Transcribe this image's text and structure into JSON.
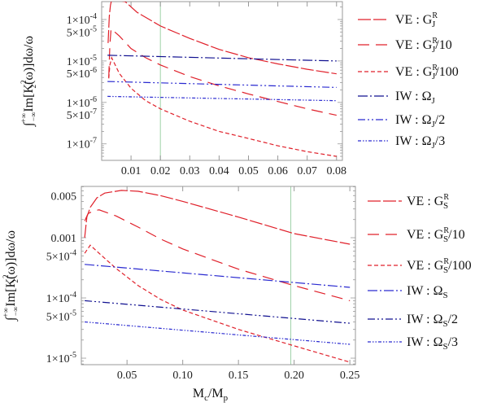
{
  "colors": {
    "red": "#e0202a",
    "blue": "#2a2ad0",
    "navy": "#101090",
    "grid": "#9fd3a8",
    "frame": "#999999"
  },
  "chart_data": [
    {
      "type": "line",
      "yscale": "log",
      "xlim": [
        0,
        0.082
      ],
      "ylim": [
        4e-08,
        0.00027
      ],
      "xlabel": null,
      "ylabel": [
        {
          "t": "∫"
        },
        {
          "t": "+∞",
          "s": "sup"
        },
        {
          "t": "−∞",
          "s": "sub"
        },
        {
          "t": "Im[K"
        },
        {
          "t": "2",
          "s": "sup"
        },
        {
          "t": "2",
          "s": "sub"
        },
        {
          "t": "(ω)]dω/ω"
        }
      ],
      "vline": 0.02,
      "xticks": [
        {
          "v": 0.01,
          "label": "0.01"
        },
        {
          "v": 0.02,
          "label": "0.02"
        },
        {
          "v": 0.03,
          "label": "0.03"
        },
        {
          "v": 0.04,
          "label": "0.04"
        },
        {
          "v": 0.05,
          "label": "0.05"
        },
        {
          "v": 0.06,
          "label": "0.06"
        },
        {
          "v": 0.07,
          "label": "0.07"
        },
        {
          "v": 0.08,
          "label": "0.08"
        }
      ],
      "yticks": [
        {
          "v": 0.0001,
          "m": "1",
          "e": "-4"
        },
        {
          "v": 5e-05,
          "m": "5",
          "e": "-5"
        },
        {
          "v": 1e-05,
          "m": "1",
          "e": "-5"
        },
        {
          "v": 5e-06,
          "m": "5",
          "e": "-6"
        },
        {
          "v": 1e-06,
          "m": "1",
          "e": "-6"
        },
        {
          "v": 5e-07,
          "m": "5",
          "e": "-7"
        },
        {
          "v": 1e-07,
          "m": "1",
          "e": "-7"
        }
      ],
      "legend_position": "right",
      "series": [
        {
          "name": "VE : G_J^R",
          "label": {
            "pre": "VE : G",
            "sup": "R",
            "sub": "J",
            "post": ""
          },
          "color": "red",
          "dash": "16,3",
          "x": [
            0.0022,
            0.0026,
            0.003,
            0.0034,
            0.008,
            0.012,
            0.02,
            0.03,
            0.04,
            0.05,
            0.06,
            0.07,
            0.08
          ],
          "y": [
            2.7e-05,
            0.00012,
            0.00022,
            0.0003,
            0.00027,
            0.00015,
            7e-05,
            3.5e-05,
            1.9e-05,
            1.2e-05,
            8.5e-06,
            6.3e-06,
            4.9e-06
          ]
        },
        {
          "name": "VE : G_J^R/10",
          "label": {
            "pre": "VE : G",
            "sup": "R",
            "sub": "J",
            "post": "/10"
          },
          "color": "red",
          "dash": "14,8",
          "x": [
            0.0024,
            0.0028,
            0.0032,
            0.006,
            0.01,
            0.015,
            0.02,
            0.03,
            0.04,
            0.05,
            0.06,
            0.07,
            0.08
          ],
          "y": [
            4e-06,
            2.5e-05,
            6e-05,
            4e-05,
            2e-05,
            1.2e-05,
            8e-06,
            4.2e-06,
            2.5e-06,
            1.6e-06,
            1.05e-06,
            7e-07,
            4.9e-07
          ]
        },
        {
          "name": "VE : G_J^R/100",
          "label": {
            "pre": "VE : G",
            "sup": "R",
            "sub": "J",
            "post": "/100"
          },
          "color": "red",
          "dash": "5,3",
          "x": [
            0.0024,
            0.0028,
            0.0034,
            0.006,
            0.01,
            0.015,
            0.02,
            0.03,
            0.04,
            0.05,
            0.06,
            0.07,
            0.08
          ],
          "y": [
            3.8e-06,
            8e-06,
            1.2e-05,
            5e-06,
            2.2e-06,
            1.1e-06,
            7e-07,
            3.5e-07,
            2e-07,
            1.35e-07,
            9e-08,
            6.5e-08,
            5e-08
          ]
        },
        {
          "name": "IW : Ω_J",
          "label": {
            "pre": "IW : Ω",
            "sup": "",
            "sub": "J",
            "post": ""
          },
          "color": "navy",
          "dash": "12,3,2,3",
          "x": [
            0.002,
            0.08
          ],
          "y": [
            1.37e-05,
            1e-05
          ]
        },
        {
          "name": "IW : Ω_J/2",
          "label": {
            "pre": "IW : Ω",
            "sup": "",
            "sub": "J",
            "post": "/2"
          },
          "color": "blue",
          "dash": "9,3,2,3,2,3",
          "x": [
            0.002,
            0.08
          ],
          "y": [
            3.2e-06,
            2.3e-06
          ]
        },
        {
          "name": "IW : Ω_J/3",
          "label": {
            "pre": "IW : Ω",
            "sup": "",
            "sub": "J",
            "post": "/3"
          },
          "color": "blue",
          "dash": "4,2,1.5,2,1.5,2",
          "x": [
            0.002,
            0.08
          ],
          "y": [
            1.4e-06,
            1.1e-06
          ]
        }
      ]
    },
    {
      "type": "line",
      "yscale": "log",
      "xlim": [
        0.009,
        0.255
      ],
      "ylim": [
        7.8e-06,
        0.0071
      ],
      "xlabel": {
        "pre": "M",
        "sub1": "c",
        "mid": "/M",
        "sub2": "p"
      },
      "ylabel": [
        {
          "t": "∫"
        },
        {
          "t": "+∞",
          "s": "sup"
        },
        {
          "t": "−∞",
          "s": "sub"
        },
        {
          "t": "Im[K"
        },
        {
          "t": "2",
          "s": "sup"
        },
        {
          "t": "2",
          "s": "sub"
        },
        {
          "t": "(ω)]dω/ω"
        }
      ],
      "vline": 0.197,
      "xticks": [
        {
          "v": 0.05,
          "label": "0.05"
        },
        {
          "v": 0.1,
          "label": "0.10"
        },
        {
          "v": 0.15,
          "label": "0.15"
        },
        {
          "v": 0.2,
          "label": "0.20"
        },
        {
          "v": 0.25,
          "label": "0.25"
        }
      ],
      "yticks": [
        {
          "v": 0.005,
          "m": "0.005",
          "e": ""
        },
        {
          "v": 0.001,
          "m": "0.001",
          "e": ""
        },
        {
          "v": 0.0005,
          "m": "5",
          "e": "-4"
        },
        {
          "v": 0.0001,
          "m": "1",
          "e": "-4"
        },
        {
          "v": 5e-05,
          "m": "5",
          "e": "-5"
        },
        {
          "v": 1e-05,
          "m": "1",
          "e": "-5"
        }
      ],
      "legend_position": "right",
      "series": [
        {
          "name": "VE : G_S^R",
          "label": {
            "pre": "VE : G",
            "sup": "R",
            "sub": "S",
            "post": ""
          },
          "color": "red",
          "dash": "16,3",
          "x": [
            0.012,
            0.014,
            0.017,
            0.023,
            0.03,
            0.045,
            0.06,
            0.08,
            0.1,
            0.15,
            0.2,
            0.25
          ],
          "y": [
            0.001,
            0.0022,
            0.0032,
            0.0046,
            0.0055,
            0.0061,
            0.0059,
            0.005,
            0.004,
            0.0022,
            0.00117,
            0.00078
          ]
        },
        {
          "name": "VE : G_S^R/10",
          "label": {
            "pre": "VE : G",
            "sup": "R",
            "sub": "S",
            "post": "/10"
          },
          "color": "red",
          "dash": "14,8",
          "x": [
            0.012,
            0.015,
            0.02,
            0.025,
            0.04,
            0.06,
            0.08,
            0.1,
            0.15,
            0.2,
            0.25
          ],
          "y": [
            0.0019,
            0.0025,
            0.0028,
            0.0029,
            0.0023,
            0.0015,
            0.00095,
            0.00065,
            0.0003,
            0.00016,
            9e-05
          ]
        },
        {
          "name": "VE : G_S^R/100",
          "label": {
            "pre": "VE : G",
            "sup": "R",
            "sub": "S",
            "post": "/100"
          },
          "color": "red",
          "dash": "5,3",
          "x": [
            0.012,
            0.017,
            0.025,
            0.04,
            0.06,
            0.08,
            0.1,
            0.15,
            0.2,
            0.25
          ],
          "y": [
            0.00055,
            0.00075,
            0.00055,
            0.00031,
            0.00016,
            9.5e-05,
            6.3e-05,
            3e-05,
            1.6e-05,
            8.6e-06
          ]
        },
        {
          "name": "IW : Ω_S",
          "label": {
            "pre": "IW : Ω",
            "sup": "",
            "sub": "S",
            "post": ""
          },
          "color": "blue",
          "dash": "12,3,2,3",
          "x": [
            0.012,
            0.25
          ],
          "y": [
            0.00036,
            0.00015
          ]
        },
        {
          "name": "IW : Ω_S/2",
          "label": {
            "pre": "IW : Ω",
            "sup": "",
            "sub": "S",
            "post": "/2"
          },
          "color": "navy",
          "dash": "9,3,2,3,2,3",
          "x": [
            0.012,
            0.25
          ],
          "y": [
            9e-05,
            3.8e-05
          ]
        },
        {
          "name": "IW : Ω_S/3",
          "label": {
            "pre": "IW : Ω",
            "sup": "",
            "sub": "S",
            "post": "/3"
          },
          "color": "blue",
          "dash": "4,2,1.5,2,1.5,2",
          "x": [
            0.012,
            0.25
          ],
          "y": [
            4e-05,
            1.7e-05
          ]
        }
      ]
    }
  ]
}
